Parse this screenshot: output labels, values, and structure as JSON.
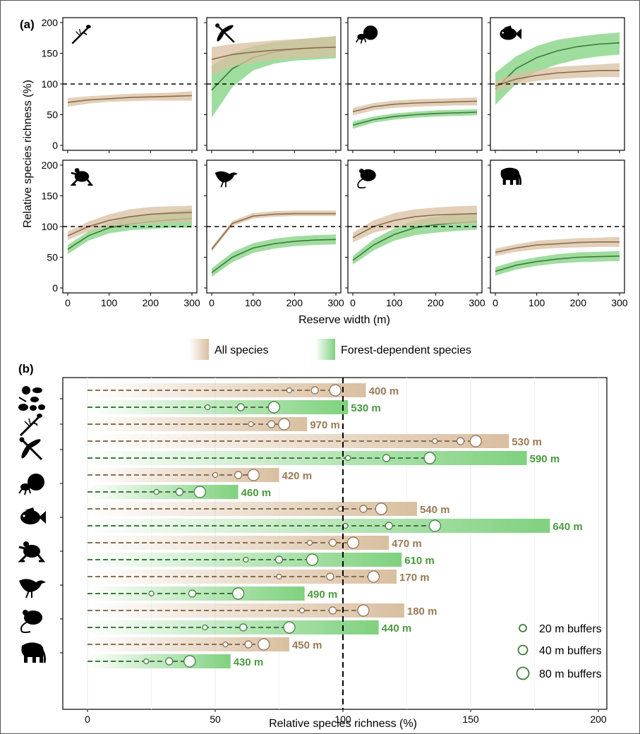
{
  "figure": {
    "panel_a_label": "(a)",
    "panel_b_label": "(b)",
    "legend": {
      "all_species": "All species",
      "forest_species": "Forest-dependent species"
    },
    "buffer_legend": [
      "20 m buffers",
      "40 m buffers",
      "80 m buffers"
    ]
  },
  "colors": {
    "all_line": "#8b6e50",
    "all_band": "#d9bfa0",
    "forest_line": "#3d7a3a",
    "forest_band": "#7fd17f",
    "all_text": "#9b7a55",
    "forest_text": "#4a9a3e"
  },
  "chart_data": [
    {
      "type": "line",
      "panel": "a",
      "xlabel": "Reserve width (m)",
      "ylabel": "Relative species richness (%)",
      "xlim": [
        0,
        300
      ],
      "ylim": [
        0,
        200
      ],
      "xticks": [
        0,
        100,
        200,
        300
      ],
      "yticks": [
        0,
        50,
        100,
        150,
        200
      ],
      "reference_line": 100,
      "x": [
        0,
        50,
        100,
        150,
        200,
        250,
        300
      ],
      "subplots": [
        {
          "taxon_icon": "dragonfly-larva-icon",
          "series": [
            {
              "name": "All species",
              "y": [
                70,
                74,
                76,
                78,
                79,
                80,
                81
              ],
              "lo": [
                63,
                68,
                71,
                72,
                73,
                73,
                73
              ],
              "hi": [
                77,
                80,
                82,
                84,
                85,
                86,
                88
              ]
            }
          ]
        },
        {
          "taxon_icon": "dragonfly-icon",
          "series": [
            {
              "name": "All species",
              "y": [
                140,
                148,
                152,
                155,
                157,
                159,
                160
              ],
              "lo": [
                115,
                128,
                135,
                140,
                142,
                143,
                145
              ],
              "hi": [
                160,
                165,
                168,
                171,
                173,
                175,
                178
              ]
            },
            {
              "name": "Forest-dependent species",
              "y": [
                90,
                125,
                143,
                152,
                157,
                159,
                160
              ],
              "lo": [
                45,
                95,
                122,
                133,
                138,
                140,
                142
              ],
              "hi": [
                130,
                150,
                162,
                168,
                172,
                175,
                178
              ]
            }
          ]
        },
        {
          "taxon_icon": "dung-beetle-icon",
          "series": [
            {
              "name": "All species",
              "y": [
                55,
                63,
                67,
                69,
                70,
                71,
                72
              ],
              "lo": [
                49,
                57,
                61,
                63,
                64,
                65,
                65
              ],
              "hi": [
                61,
                69,
                73,
                75,
                76,
                77,
                78
              ]
            },
            {
              "name": "Forest-dependent species",
              "y": [
                33,
                42,
                47,
                50,
                52,
                53,
                54
              ],
              "lo": [
                27,
                37,
                42,
                45,
                47,
                48,
                49
              ],
              "hi": [
                39,
                47,
                52,
                55,
                57,
                58,
                59
              ]
            }
          ]
        },
        {
          "taxon_icon": "fish-icon",
          "series": [
            {
              "name": "All species",
              "y": [
                97,
                108,
                114,
                118,
                120,
                122,
                122
              ],
              "lo": [
                88,
                99,
                105,
                108,
                110,
                111,
                111
              ],
              "hi": [
                105,
                117,
                123,
                128,
                130,
                132,
                134
              ]
            },
            {
              "name": "Forest-dependent species",
              "y": [
                92,
                125,
                143,
                154,
                161,
                165,
                167
              ],
              "lo": [
                66,
                100,
                120,
                132,
                140,
                145,
                148
              ],
              "hi": [
                118,
                145,
                162,
                172,
                177,
                181,
                184
              ]
            }
          ]
        },
        {
          "taxon_icon": "frog-icon",
          "series": [
            {
              "name": "All species",
              "y": [
                85,
                100,
                110,
                116,
                120,
                122,
                123
              ],
              "lo": [
                78,
                92,
                100,
                103,
                105,
                106,
                107
              ],
              "hi": [
                92,
                108,
                120,
                128,
                132,
                133,
                134
              ]
            },
            {
              "name": "Forest-dependent species",
              "y": [
                63,
                85,
                98,
                104,
                108,
                111,
                113
              ],
              "lo": [
                55,
                77,
                89,
                94,
                96,
                98,
                98
              ],
              "hi": [
                70,
                92,
                106,
                116,
                121,
                125,
                128
              ]
            }
          ]
        },
        {
          "taxon_icon": "bird-icon",
          "series": [
            {
              "name": "All species",
              "y": [
                63,
                105,
                117,
                120,
                121,
                121,
                121
              ],
              "lo": [
                59,
                101,
                113,
                116,
                117,
                117,
                117
              ],
              "hi": [
                67,
                109,
                122,
                125,
                126,
                126,
                126
              ]
            },
            {
              "name": "Forest-dependent species",
              "y": [
                25,
                50,
                65,
                72,
                76,
                78,
                79
              ],
              "lo": [
                18,
                42,
                57,
                64,
                68,
                70,
                71
              ],
              "hi": [
                32,
                58,
                73,
                80,
                84,
                86,
                87
              ]
            }
          ]
        },
        {
          "taxon_icon": "rodent-icon",
          "series": [
            {
              "name": "All species",
              "y": [
                82,
                100,
                110,
                116,
                119,
                120,
                121
              ],
              "lo": [
                74,
                90,
                98,
                102,
                104,
                105,
                106
              ],
              "hi": [
                90,
                110,
                122,
                128,
                131,
                133,
                134
              ]
            },
            {
              "name": "Forest-dependent species",
              "y": [
                45,
                70,
                87,
                98,
                103,
                106,
                108
              ],
              "lo": [
                38,
                61,
                77,
                86,
                90,
                93,
                95
              ],
              "hi": [
                52,
                79,
                97,
                110,
                116,
                120,
                123
              ]
            }
          ]
        },
        {
          "taxon_icon": "elephant-icon",
          "series": [
            {
              "name": "All species",
              "y": [
                58,
                65,
                70,
                72,
                74,
                75,
                75
              ],
              "lo": [
                52,
                59,
                63,
                65,
                66,
                67,
                67
              ],
              "hi": [
                64,
                71,
                77,
                79,
                81,
                82,
                83
              ]
            },
            {
              "name": "Forest-dependent species",
              "y": [
                27,
                37,
                43,
                47,
                50,
                51,
                52
              ],
              "lo": [
                20,
                30,
                36,
                40,
                42,
                43,
                44
              ],
              "hi": [
                34,
                44,
                50,
                55,
                58,
                59,
                60
              ]
            }
          ]
        }
      ]
    },
    {
      "type": "bar",
      "panel": "b",
      "orientation": "horizontal",
      "xlabel": "Relative species richness (%)",
      "xlim": [
        0,
        210
      ],
      "xticks": [
        0,
        50,
        100,
        150,
        200
      ],
      "reference_line": 100,
      "grid": true,
      "groups": [
        {
          "taxon_icon": "all-taxa-icon",
          "bars": [
            {
              "series": "All species",
              "value": 109,
              "width_label": "400 m",
              "buffers": [
                79,
                89,
                97
              ]
            },
            {
              "series": "Forest-dependent species",
              "value": 102,
              "width_label": "530 m",
              "buffers": [
                47,
                60,
                73
              ]
            }
          ]
        },
        {
          "taxon_icon": "dragonfly-larva-icon",
          "bars": [
            {
              "series": "All species",
              "value": 86,
              "width_label": "970 m",
              "buffers": [
                64,
                72,
                77
              ]
            }
          ]
        },
        {
          "taxon_icon": "dragonfly-icon",
          "bars": [
            {
              "series": "All species",
              "value": 165,
              "width_label": "530 m",
              "buffers": [
                136,
                146,
                152
              ]
            },
            {
              "series": "Forest-dependent species",
              "value": 172,
              "width_label": "590 m",
              "buffers": [
                102,
                117,
                134
              ]
            }
          ]
        },
        {
          "taxon_icon": "dung-beetle-icon",
          "bars": [
            {
              "series": "All species",
              "value": 75,
              "width_label": "420 m",
              "buffers": [
                50,
                59,
                65
              ]
            },
            {
              "series": "Forest-dependent species",
              "value": 59,
              "width_label": "460 m",
              "buffers": [
                27,
                36,
                44
              ]
            }
          ]
        },
        {
          "taxon_icon": "fish-icon",
          "bars": [
            {
              "series": "All species",
              "value": 129,
              "width_label": "540 m",
              "buffers": [
                99,
                108,
                115
              ]
            },
            {
              "series": "Forest-dependent species",
              "value": 181,
              "width_label": "640 m",
              "buffers": [
                101,
                118,
                136
              ]
            }
          ]
        },
        {
          "taxon_icon": "frog-icon",
          "bars": [
            {
              "series": "All species",
              "value": 118,
              "width_label": "470 m",
              "buffers": [
                87,
                96,
                104
              ]
            },
            {
              "series": "Forest-dependent species",
              "value": 123,
              "width_label": "610 m",
              "buffers": [
                62,
                75,
                88
              ]
            }
          ]
        },
        {
          "taxon_icon": "bird-icon",
          "bars": [
            {
              "series": "All species",
              "value": 121,
              "width_label": "170 m",
              "buffers": [
                75,
                95,
                112
              ]
            },
            {
              "series": "Forest-dependent species",
              "value": 85,
              "width_label": "490 m",
              "buffers": [
                25,
                41,
                59
              ]
            }
          ]
        },
        {
          "taxon_icon": "rodent-icon",
          "bars": [
            {
              "series": "All species",
              "value": 124,
              "width_label": "180 m",
              "buffers": [
                84,
                96,
                108
              ]
            },
            {
              "series": "Forest-dependent species",
              "value": 114,
              "width_label": "440 m",
              "buffers": [
                46,
                61,
                79
              ]
            }
          ]
        },
        {
          "taxon_icon": "elephant-icon",
          "bars": [
            {
              "series": "All species",
              "value": 79,
              "width_label": "450 m",
              "buffers": [
                54,
                63,
                69
              ]
            },
            {
              "series": "Forest-dependent species",
              "value": 56,
              "width_label": "430 m",
              "buffers": [
                23,
                32,
                40
              ]
            }
          ]
        }
      ]
    }
  ]
}
